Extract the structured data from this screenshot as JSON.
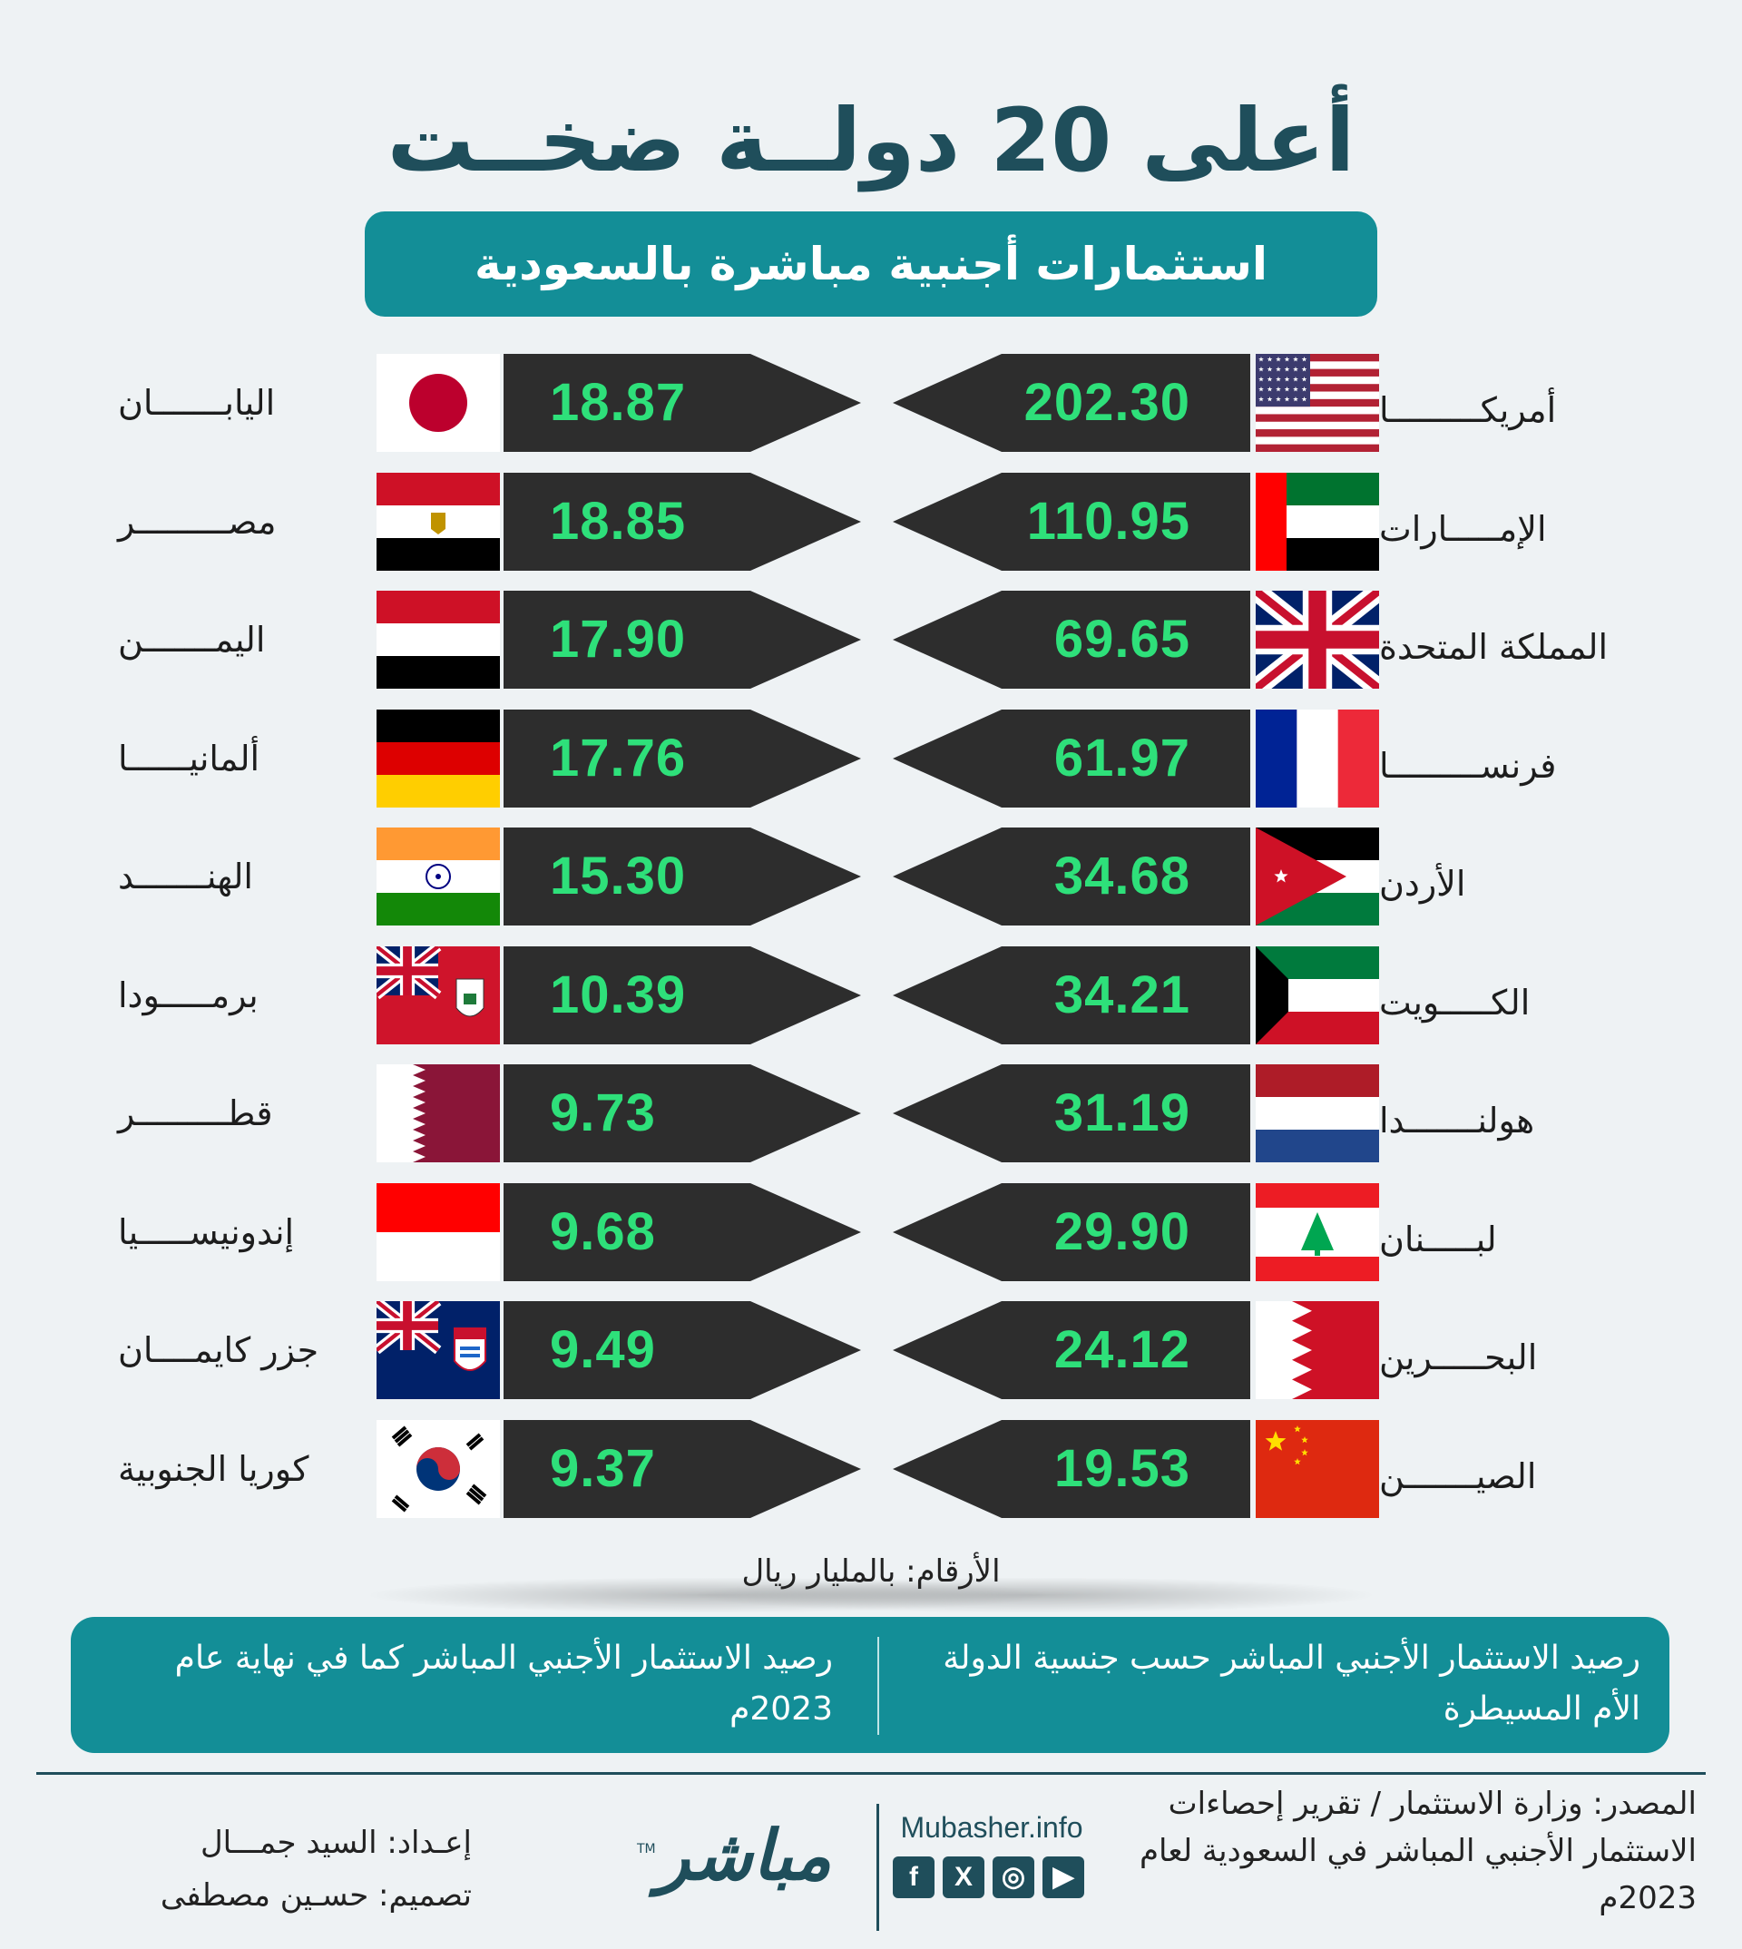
{
  "header": {
    "title": "أعلى 20 دولــة ضخــت",
    "subtitle": "استثمارات أجنبية مباشرة بالسعودية"
  },
  "colors": {
    "teal": "#138e97",
    "dark_teal": "#1f4e5b",
    "value_green": "#2ee07a",
    "arrow_fill": "#2d2d2d"
  },
  "right_column": [
    {
      "country": "أمريكـــــــــا",
      "value": "202.30",
      "flag_icon": "usa-flag-icon"
    },
    {
      "country": "الإمـــــارات",
      "value": "110.95",
      "flag_icon": "uae-flag-icon"
    },
    {
      "country": "المملكة المتحدة",
      "value": "69.65",
      "flag_icon": "uk-flag-icon"
    },
    {
      "country": "فرنســـــــــا",
      "value": "61.97",
      "flag_icon": "france-flag-icon"
    },
    {
      "country": "الأردن",
      "value": "34.68",
      "flag_icon": "jordan-flag-icon"
    },
    {
      "country": "الكـــــويت",
      "value": "34.21",
      "flag_icon": "kuwait-flag-icon"
    },
    {
      "country": "هولنـــــــدا",
      "value": "31.19",
      "flag_icon": "netherlands-flag-icon"
    },
    {
      "country": "لبـــــنان",
      "value": "29.90",
      "flag_icon": "lebanon-flag-icon"
    },
    {
      "country": "البحـــــرين",
      "value": "24.12",
      "flag_icon": "bahrain-flag-icon"
    },
    {
      "country": "الصيـــــــن",
      "value": "19.53",
      "flag_icon": "china-flag-icon"
    }
  ],
  "left_column": [
    {
      "country": "اليابـــــــان",
      "value": "18.87",
      "flag_icon": "japan-flag-icon"
    },
    {
      "country": "مصـــــــــر",
      "value": "18.85",
      "flag_icon": "egypt-flag-icon"
    },
    {
      "country": "اليمـــــــن",
      "value": "17.90",
      "flag_icon": "yemen-flag-icon"
    },
    {
      "country": "ألمانيــــــا",
      "value": "17.76",
      "flag_icon": "germany-flag-icon"
    },
    {
      "country": "الهنـــــــد",
      "value": "15.30",
      "flag_icon": "india-flag-icon"
    },
    {
      "country": "برمـــــودا",
      "value": "10.39",
      "flag_icon": "bermuda-flag-icon"
    },
    {
      "country": "قطـــــــــر",
      "value": "9.73",
      "flag_icon": "qatar-flag-icon"
    },
    {
      "country": "إندونيســـــيا",
      "value": "9.68",
      "flag_icon": "indonesia-flag-icon"
    },
    {
      "country": "جزر كايمــــان",
      "value": "9.49",
      "flag_icon": "cayman-flag-icon"
    },
    {
      "country": "كوريا الجنوبية",
      "value": "9.37",
      "flag_icon": "south-korea-flag-icon"
    }
  ],
  "unit_note": "الأرقام: بالمليار ريال",
  "info_box": {
    "right_text": "رصيد الاستثمار الأجنبي المباشر حسب جنسية الدولة الأم المسيطرة",
    "left_text": "رصيد الاستثمار الأجنبي المباشر كما في نهاية عام 2023م"
  },
  "footer": {
    "source": "المصدر: وزارة الاستثمار / تقرير إحصاءات الاستثمار الأجنبي المباشر في السعودية لعام 2023م",
    "prepared_by": "إعـداد: السيد جمـــال",
    "design_by": "تصميم: حسـين مصطفى",
    "logo_text": "مباشر",
    "logo_tm": "TM",
    "website": "Mubasher.info",
    "social": [
      {
        "name": "facebook-icon",
        "glyph": "f"
      },
      {
        "name": "x-icon",
        "glyph": "X"
      },
      {
        "name": "instagram-icon",
        "glyph": "◎"
      },
      {
        "name": "youtube-icon",
        "glyph": "▶"
      }
    ]
  }
}
